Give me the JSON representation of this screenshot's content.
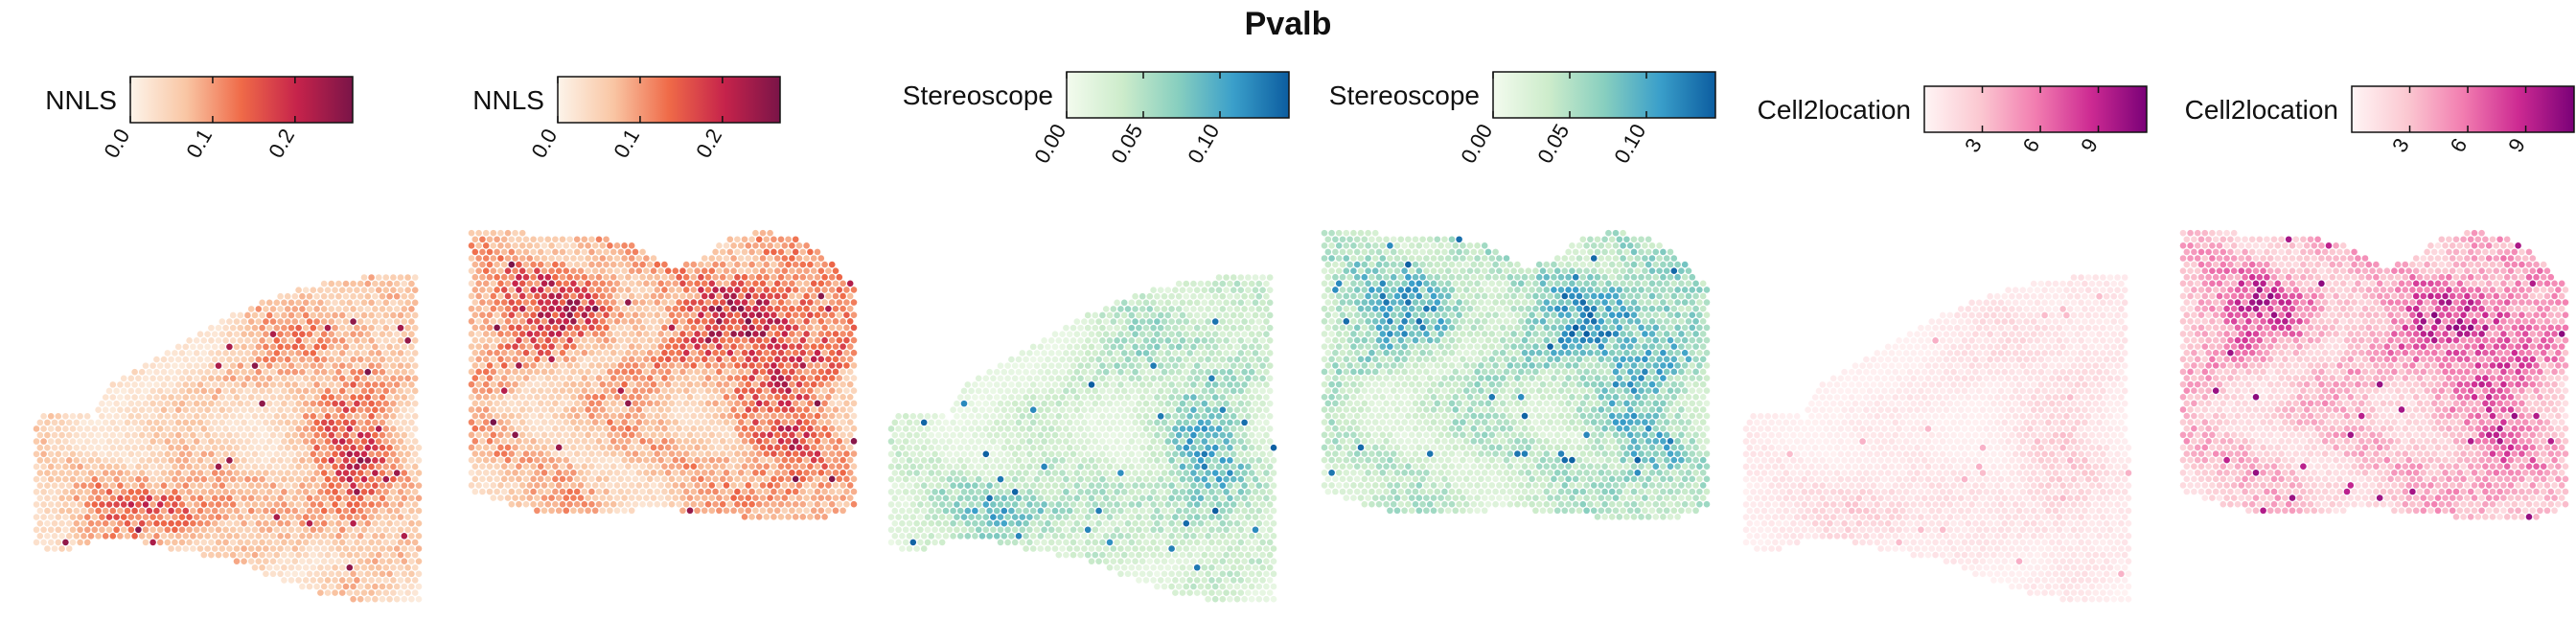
{
  "figure": {
    "title": "Pvalb"
  },
  "chart_data": [
    {
      "type": "heatmap",
      "method": "NNLS",
      "colormap": "OrRd-like",
      "colors": [
        "#fdf4ea",
        "#f9c6a4",
        "#ef6a48",
        "#c6234b",
        "#7a1448"
      ],
      "range": [
        0,
        0.27
      ],
      "ticks": [
        0.0,
        0.1,
        0.2
      ],
      "tick_labels": [
        "0.0",
        "0.1",
        "0.2"
      ],
      "tick_rotation": "rotated",
      "section": "sagittal-brain-A",
      "spot_value_summary": {
        "median": 0.03,
        "max": 0.27
      }
    },
    {
      "type": "heatmap",
      "method": "NNLS",
      "colormap": "OrRd-like",
      "colors": [
        "#fdf4ea",
        "#f9c6a4",
        "#ef6a48",
        "#c6234b",
        "#7a1448"
      ],
      "range": [
        0,
        0.27
      ],
      "ticks": [
        0.0,
        0.1,
        0.2
      ],
      "tick_labels": [
        "0.0",
        "0.1",
        "0.2"
      ],
      "tick_rotation": "rotated",
      "section": "sagittal-brain-B",
      "spot_value_summary": {
        "median": 0.08,
        "max": 0.27
      }
    },
    {
      "type": "heatmap",
      "method": "Stereoscope",
      "colormap": "GnBu-like",
      "colors": [
        "#f3fbee",
        "#cdeccb",
        "#88cfbf",
        "#3a9fca",
        "#0c5da0"
      ],
      "range": [
        0,
        0.145
      ],
      "ticks": [
        0.0,
        0.05,
        0.1
      ],
      "tick_labels": [
        "0.00",
        "0.05",
        "0.10"
      ],
      "tick_rotation": "rotated",
      "section": "sagittal-brain-A",
      "spot_value_summary": {
        "median": 0.02,
        "max": 0.145
      }
    },
    {
      "type": "heatmap",
      "method": "Stereoscope",
      "colormap": "GnBu-like",
      "colors": [
        "#f3fbee",
        "#cdeccb",
        "#88cfbf",
        "#3a9fca",
        "#0c5da0"
      ],
      "range": [
        0,
        0.145
      ],
      "ticks": [
        0.0,
        0.05,
        0.1
      ],
      "tick_labels": [
        "0.00",
        "0.05",
        "0.10"
      ],
      "tick_rotation": "rotated",
      "section": "sagittal-brain-B",
      "spot_value_summary": {
        "median": 0.02,
        "max": 0.145
      }
    },
    {
      "type": "heatmap",
      "method": "Cell2location",
      "colormap": "RdPu-like",
      "colors": [
        "#fff5f5",
        "#fbc8d1",
        "#f27db0",
        "#cd2a92",
        "#7a0178"
      ],
      "range": [
        0,
        11.5
      ],
      "ticks": [
        3,
        6,
        9
      ],
      "tick_labels": [
        "3",
        "6",
        "9"
      ],
      "tick_rotation": "rotated",
      "section": "sagittal-brain-A",
      "spot_value_summary": {
        "median": 0.5,
        "max": 4
      }
    },
    {
      "type": "heatmap",
      "method": "Cell2location",
      "colormap": "RdPu-like",
      "colors": [
        "#fff5f5",
        "#fbc8d1",
        "#f27db0",
        "#cd2a92",
        "#7a0178"
      ],
      "range": [
        0,
        11.5
      ],
      "ticks": [
        3,
        6,
        9
      ],
      "tick_labels": [
        "3",
        "6",
        "9"
      ],
      "tick_rotation": "rotated",
      "section": "sagittal-brain-B",
      "spot_value_summary": {
        "median": 1.5,
        "max": 11
      }
    }
  ]
}
